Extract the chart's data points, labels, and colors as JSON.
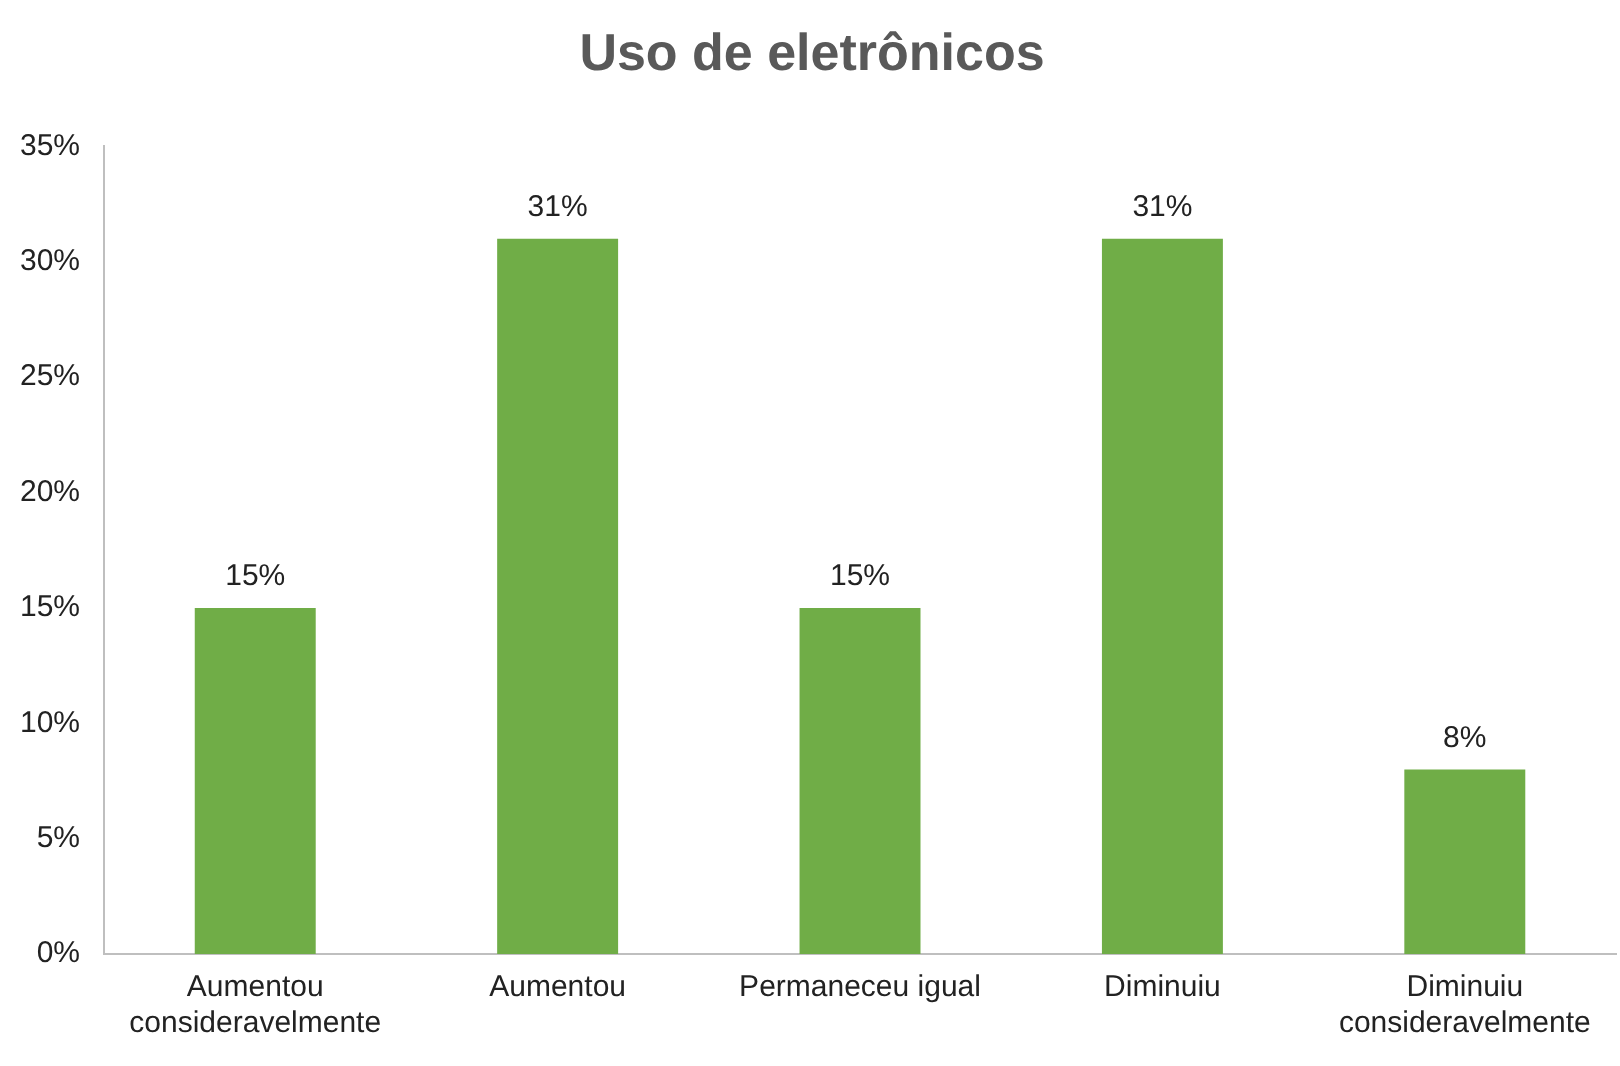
{
  "chart_data": {
    "type": "bar",
    "title": "Uso de eletrônicos",
    "categories": [
      "Aumentou consideravelmente",
      "Aumentou",
      "Permaneceu igual",
      "Diminuiu",
      "Diminuiu consideravelmente"
    ],
    "values": [
      15,
      31,
      15,
      31,
      8
    ],
    "value_labels": [
      "15%",
      "31%",
      "15%",
      "31%",
      "8%"
    ],
    "color": "#70ad47",
    "ylim": [
      0,
      35
    ],
    "yticks": [
      {
        "value": 0,
        "label": "0%"
      },
      {
        "value": 5,
        "label": "5%"
      },
      {
        "value": 10,
        "label": "10%"
      },
      {
        "value": 15,
        "label": "15%"
      },
      {
        "value": 20,
        "label": "20%"
      },
      {
        "value": 25,
        "label": "25%"
      },
      {
        "value": 30,
        "label": "30%"
      },
      {
        "value": 35,
        "label": "35%"
      }
    ],
    "grid": false,
    "legend": false
  }
}
